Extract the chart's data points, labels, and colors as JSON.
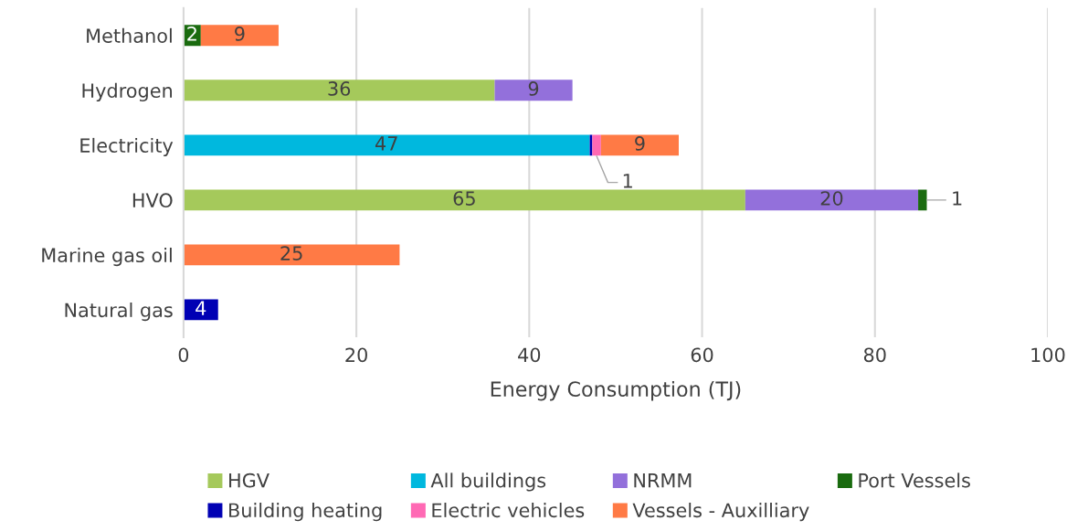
{
  "chart_data": {
    "type": "bar",
    "orientation": "horizontal",
    "stacked": true,
    "xlabel": "Energy Consumption (TJ)",
    "categories": [
      "Methanol",
      "Hydrogen",
      "Electricity",
      "HVO",
      "Marine gas oil",
      "Natural gas"
    ],
    "series": [
      {
        "name": "HGV",
        "color": "#a5c95b",
        "values": [
          null,
          36,
          null,
          65,
          null,
          null
        ],
        "value_labels": [
          null,
          "36",
          null,
          "65",
          null,
          null
        ]
      },
      {
        "name": "All buildings",
        "color": "#00b8de",
        "values": [
          null,
          null,
          47,
          null,
          null,
          null
        ],
        "value_labels": [
          null,
          null,
          "47",
          null,
          null,
          null
        ]
      },
      {
        "name": "NRMM",
        "color": "#9370db",
        "values": [
          null,
          9,
          null,
          20,
          null,
          null
        ],
        "value_labels": [
          null,
          "9",
          null,
          "20",
          null,
          null
        ]
      },
      {
        "name": "Port Vessels",
        "color": "#1a6b0f",
        "values": [
          2,
          null,
          null,
          1,
          null,
          null
        ],
        "value_labels": [
          "2",
          null,
          null,
          "1",
          null,
          null
        ]
      },
      {
        "name": "Building heating",
        "color": "#0000b4",
        "values": [
          null,
          null,
          0.3,
          null,
          null,
          4
        ],
        "value_labels": [
          null,
          null,
          null,
          null,
          null,
          "4"
        ]
      },
      {
        "name": "Electric vehicles",
        "color": "#ff69b4",
        "values": [
          null,
          null,
          1,
          null,
          null,
          null
        ],
        "value_labels": [
          null,
          null,
          "1",
          null,
          null,
          null
        ]
      },
      {
        "name": "Vessels - Auxilliary",
        "color": "#ff7a45",
        "values": [
          9,
          null,
          9,
          null,
          25,
          null
        ],
        "value_labels": [
          "9",
          null,
          "9",
          null,
          "25",
          null
        ]
      }
    ],
    "xlim": [
      0,
      100
    ],
    "xticks": [
      0,
      20,
      40,
      60,
      80,
      100
    ],
    "grid": "x",
    "legend": "bottom"
  }
}
